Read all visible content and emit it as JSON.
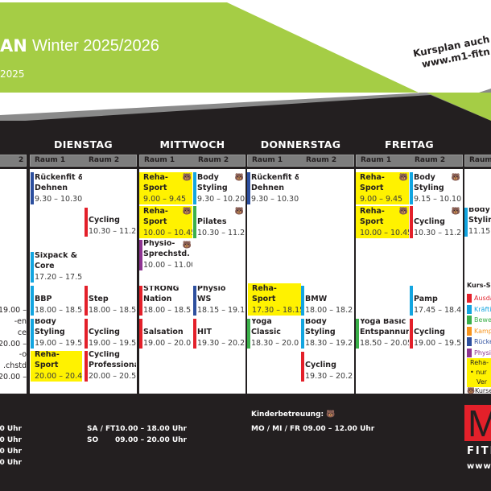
{
  "header": {
    "title_fragment": "AN",
    "season": "Winter 2025/2026",
    "date_fragment": "2025",
    "web_note_line1": "Kursplan auch",
    "web_note_line2": "www.m1-fitn",
    "brand_green": "#a5cd45"
  },
  "days": [
    {
      "name": "DIENSTAG",
      "room1": "Raum 1",
      "room2": "Raum 2"
    },
    {
      "name": "MITTWOCH",
      "room1": "Raum 1",
      "room2": "Raum 2"
    },
    {
      "name": "DONNERSTAG",
      "room1": "Raum 1",
      "room2": "Raum 2"
    },
    {
      "name": "FREITAG",
      "room1": "Raum 1",
      "room2": "Raum 2"
    }
  ],
  "partial_headers": {
    "left_room": "2",
    "right_room": "Raum"
  },
  "categories": {
    "red": "#e3202a",
    "blue": "#13a5e0",
    "green": "#3bb04a",
    "orange": "#f7941d",
    "navy": "#2d4f9e",
    "purple": "#8e3391",
    "yellow": "#fff200"
  },
  "events": [
    {
      "day": "Dienstag",
      "room": 1,
      "lines": [
        "Rückenfit &",
        "Dehnen"
      ],
      "time": "9.30 – 10.30",
      "cat": "navy",
      "kids": false
    },
    {
      "day": "Dienstag",
      "room": 2,
      "lines": [
        "Cycling"
      ],
      "time": "10.30 – 11.20",
      "cat": "red",
      "kids": false
    },
    {
      "day": "Dienstag",
      "room": 1,
      "lines": [
        "Sixpack &",
        "Core"
      ],
      "time": "17.20 – 17.50",
      "cat": "blue",
      "kids": false
    },
    {
      "day": "Dienstag",
      "room": 1,
      "lines": [
        "BBP"
      ],
      "time": "18.00 – 18.50",
      "cat": "blue",
      "kids": false
    },
    {
      "day": "Dienstag",
      "room": 2,
      "lines": [
        "Step"
      ],
      "time": "18.00 – 18.50",
      "cat": "red",
      "kids": false
    },
    {
      "day": "Dienstag",
      "room": 1,
      "lines": [
        "Body",
        "Styling"
      ],
      "time": "19.00 – 19.50",
      "cat": "blue",
      "kids": false
    },
    {
      "day": "Dienstag",
      "room": 2,
      "lines": [
        "Cycling"
      ],
      "time": "19.00 – 19.50",
      "cat": "red",
      "kids": false
    },
    {
      "day": "Dienstag",
      "room": 1,
      "lines": [
        "Reha-",
        "Sport"
      ],
      "time": "20.00 – 20.45",
      "cat": "yellow",
      "kids": false
    },
    {
      "day": "Dienstag",
      "room": 2,
      "lines": [
        "Cycling",
        "Professional"
      ],
      "time": "20.00 – 20.50",
      "cat": "red",
      "kids": false
    },
    {
      "day": "Mittwoch",
      "room": 1,
      "lines": [
        "Reha-",
        "Sport"
      ],
      "time": "9.00 – 9.45",
      "cat": "yellow",
      "kids": true
    },
    {
      "day": "Mittwoch",
      "room": 2,
      "lines": [
        "Body",
        "Styling"
      ],
      "time": "9.30 – 10.20",
      "cat": "blue",
      "kids": true
    },
    {
      "day": "Mittwoch",
      "room": 1,
      "lines": [
        "Reha-",
        "Sport"
      ],
      "time": "10.00 – 10.45",
      "cat": "yellow",
      "kids": true
    },
    {
      "day": "Mittwoch",
      "room": 2,
      "lines": [
        "Pilates"
      ],
      "time": "10.30 – 11.20",
      "cat": "green",
      "kids": true
    },
    {
      "day": "Mittwoch",
      "room": 1,
      "lines": [
        "Physio-",
        "Sprechstd."
      ],
      "time": "10.00 – 11.00",
      "cat": "purple",
      "kids": true
    },
    {
      "day": "Mittwoch",
      "room": 1,
      "lines": [
        "STRONG",
        "Nation"
      ],
      "time": "18.00 – 18.50",
      "cat": "red",
      "kids": false
    },
    {
      "day": "Mittwoch",
      "room": 2,
      "lines": [
        "Physio",
        "WS"
      ],
      "time": "18.15 – 19.10",
      "cat": "navy",
      "kids": false
    },
    {
      "day": "Mittwoch",
      "room": 1,
      "lines": [
        "Salsation"
      ],
      "time": "19.00 – 20.00",
      "cat": "red",
      "kids": false
    },
    {
      "day": "Mittwoch",
      "room": 2,
      "lines": [
        "HIT"
      ],
      "time": "19.30 – 20.25",
      "cat": "red",
      "kids": false
    },
    {
      "day": "Donnerstag",
      "room": 1,
      "lines": [
        "Rückenfit &",
        "Dehnen"
      ],
      "time": "9.30 – 10.30",
      "cat": "navy",
      "kids": false
    },
    {
      "day": "Donnerstag",
      "room": 1,
      "lines": [
        "Reha-",
        "Sport"
      ],
      "time": "17.30 – 18.15",
      "cat": "yellow",
      "kids": false
    },
    {
      "day": "Donnerstag",
      "room": 2,
      "lines": [
        "BMW"
      ],
      "time": "18.00 – 18.20",
      "cat": "blue",
      "kids": false
    },
    {
      "day": "Donnerstag",
      "room": 1,
      "lines": [
        "Yoga",
        "Classic"
      ],
      "time": "18.30 – 20.00",
      "cat": "green",
      "kids": false
    },
    {
      "day": "Donnerstag",
      "room": 2,
      "lines": [
        "Body",
        "Styling"
      ],
      "time": "18.30 – 19.20",
      "cat": "blue",
      "kids": false
    },
    {
      "day": "Donnerstag",
      "room": 2,
      "lines": [
        "Cycling"
      ],
      "time": "19.30 – 20.20",
      "cat": "red",
      "kids": false
    },
    {
      "day": "Freitag",
      "room": 1,
      "lines": [
        "Reha-",
        "Sport"
      ],
      "time": "9.00 – 9.45",
      "cat": "yellow",
      "kids": true
    },
    {
      "day": "Freitag",
      "room": 2,
      "lines": [
        "Body",
        "Styling"
      ],
      "time": "9.15 – 10.10",
      "cat": "blue",
      "kids": true
    },
    {
      "day": "Freitag",
      "room": 1,
      "lines": [
        "Reha-",
        "Sport"
      ],
      "time": "10.00 – 10.45",
      "cat": "yellow",
      "kids": true
    },
    {
      "day": "Freitag",
      "room": 2,
      "lines": [
        "Cycling"
      ],
      "time": "10.30 – 11.20",
      "cat": "red",
      "kids": true
    },
    {
      "day": "Freitag",
      "room": 2,
      "lines": [
        "Pamp"
      ],
      "time": "17.45 – 18.40",
      "cat": "blue",
      "kids": false
    },
    {
      "day": "Freitag",
      "room": 1,
      "lines": [
        "Yoga Basic &",
        "Entspannung"
      ],
      "time": "18.50 – 20.05",
      "cat": "green",
      "kids": false
    },
    {
      "day": "Freitag",
      "room": 2,
      "lines": [
        "Cycling"
      ],
      "time": "19.00 – 19.50",
      "cat": "red",
      "kids": false
    },
    {
      "day": "Samstag",
      "room": 1,
      "lines": [
        "Body",
        "Styling"
      ],
      "time": "11.15 –",
      "cat": "blue",
      "kids": false
    }
  ],
  "monday_fragments": [
    "– 19.00",
    "en-",
    "ce",
    "– 20.00",
    "o-",
    "chstd.",
    "– 20.00"
  ],
  "legend": {
    "title": "Kurs-Se",
    "items": [
      {
        "label": "Ausda",
        "cat": "red"
      },
      {
        "label": "Kräfti",
        "cat": "blue"
      },
      {
        "label": "Bewe",
        "cat": "green"
      },
      {
        "label": "Kamp",
        "cat": "orange"
      },
      {
        "label": "Rücke",
        "cat": "navy"
      },
      {
        "label": "Physi",
        "cat": "purple"
      }
    ],
    "reha_lines": [
      "Reha-",
      "• nur",
      "Ver"
    ],
    "kids_note": "Kurse"
  },
  "footer": {
    "hours_fragments": [
      "30 Uhr",
      "30 Uhr",
      "00 Uhr",
      "00 Uhr"
    ],
    "weekend": [
      {
        "days": "SA / FT",
        "hours": "10.00 – 18.00 Uhr"
      },
      {
        "days": "SO",
        "hours": "09.00 – 20.00 Uhr"
      }
    ],
    "kids_title": "Kinderbetreuung:",
    "kids_hours": "MO / MI / FR  09.00 – 12.00 Uhr",
    "logo_letter": "M",
    "logo_text": "FITN",
    "logo_web": "www"
  }
}
